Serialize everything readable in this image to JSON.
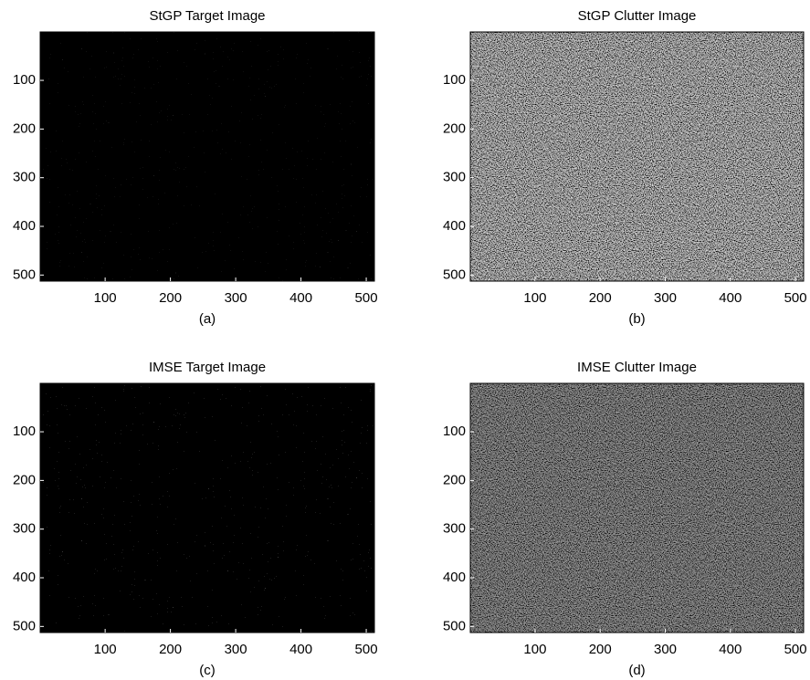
{
  "chart_data": [
    {
      "type": "image",
      "title": "StGP Target Image",
      "xlabel": "(a)",
      "xlim": [
        0.5,
        512.5
      ],
      "ylim": [
        512.5,
        0.5
      ],
      "xticks": [
        100,
        200,
        300,
        400,
        500
      ],
      "yticks": [
        100,
        200,
        300,
        400,
        500
      ]
    },
    {
      "type": "image",
      "title": "StGP Clutter Image",
      "xlabel": "(b)",
      "xlim": [
        0.5,
        512.5
      ],
      "ylim": [
        512.5,
        0.5
      ],
      "xticks": [
        100,
        200,
        300,
        400,
        500
      ],
      "yticks": [
        100,
        200,
        300,
        400,
        500
      ]
    },
    {
      "type": "image",
      "title": "IMSE Target Image",
      "xlabel": "(c)",
      "xlim": [
        0.5,
        512.5
      ],
      "ylim": [
        512.5,
        0.5
      ],
      "xticks": [
        100,
        200,
        300,
        400,
        500
      ],
      "yticks": [
        100,
        200,
        300,
        400,
        500
      ]
    },
    {
      "type": "image",
      "title": "IMSE Clutter Image",
      "xlabel": "(d)",
      "xlim": [
        0.5,
        512.5
      ],
      "ylim": [
        512.5,
        0.5
      ],
      "xticks": [
        100,
        200,
        300,
        400,
        500
      ],
      "yticks": [
        100,
        200,
        300,
        400,
        500
      ]
    }
  ]
}
